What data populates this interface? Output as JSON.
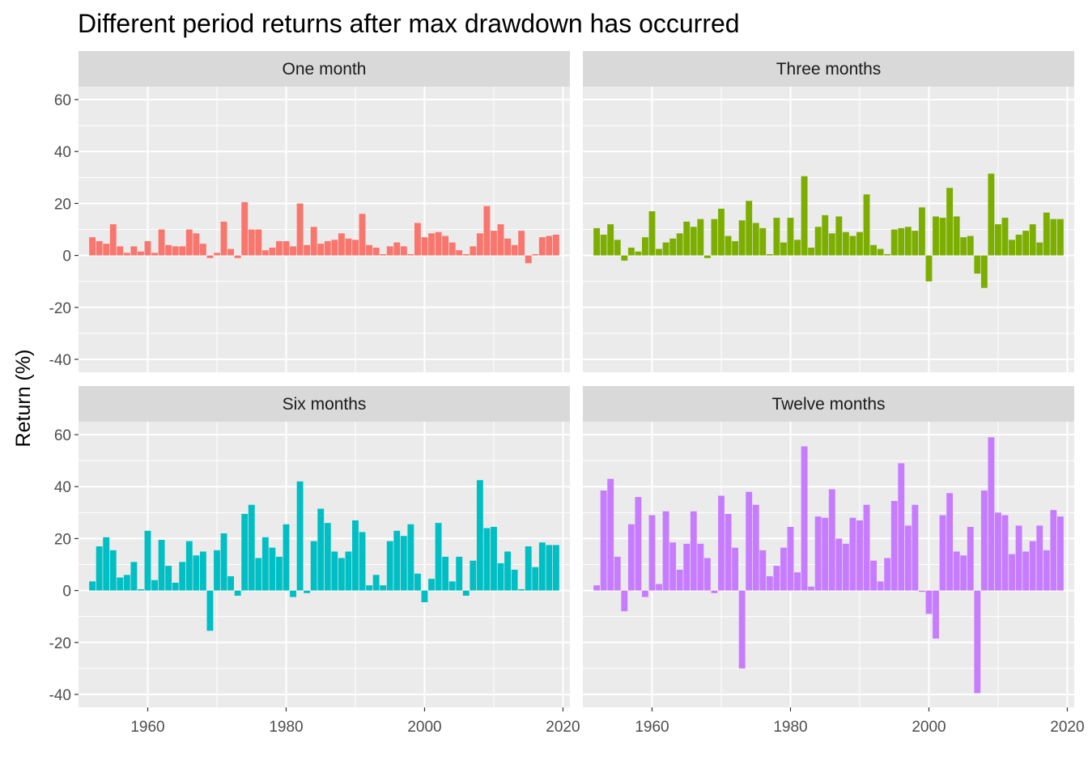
{
  "chart_data": {
    "type": "bar",
    "title": "Different period returns after max drawdown has occurred",
    "xlabel": "",
    "ylabel": "Return (%)",
    "xlim": [
      1950,
      2021
    ],
    "ylim": [
      -45,
      65
    ],
    "x_ticks": [
      1960,
      1980,
      2000,
      2020
    ],
    "y_ticks": [
      -40,
      -20,
      0,
      20,
      40,
      60
    ],
    "grid": true,
    "legend": "none",
    "layout": "2x2 facets",
    "years": [
      1952,
      1953,
      1954,
      1955,
      1956,
      1957,
      1958,
      1959,
      1960,
      1961,
      1962,
      1963,
      1964,
      1965,
      1966,
      1967,
      1968,
      1969,
      1970,
      1971,
      1972,
      1973,
      1974,
      1975,
      1976,
      1977,
      1978,
      1979,
      1980,
      1981,
      1982,
      1983,
      1984,
      1985,
      1986,
      1987,
      1988,
      1989,
      1990,
      1991,
      1992,
      1993,
      1994,
      1995,
      1996,
      1997,
      1998,
      1999,
      2000,
      2001,
      2002,
      2003,
      2004,
      2005,
      2006,
      2007,
      2008,
      2009,
      2010,
      2011,
      2012,
      2013,
      2014,
      2015,
      2016,
      2017,
      2018,
      2019
    ],
    "series": [
      {
        "name": "One month",
        "color": "#F8766D",
        "values": [
          7,
          5.5,
          4.5,
          12,
          3.5,
          1,
          3.5,
          1.5,
          5.5,
          1,
          10,
          4,
          3.5,
          3.5,
          10,
          8.5,
          4.5,
          -1,
          1,
          13,
          2.5,
          -1,
          20.5,
          10,
          10,
          2,
          3,
          5.5,
          5.5,
          3.5,
          20,
          4,
          11,
          4.5,
          5.5,
          6,
          8.5,
          6.5,
          6,
          16,
          4,
          3,
          0.5,
          3.5,
          5,
          3.5,
          0.5,
          12.5,
          7,
          8.5,
          9,
          7.5,
          5,
          2,
          0.5,
          3.5,
          8.5,
          19,
          9.5,
          12,
          6.5,
          4,
          9.5,
          -3,
          0.5,
          7,
          7.5,
          8
        ]
      },
      {
        "name": "Three months",
        "color": "#7CAE00",
        "values": [
          10.5,
          8,
          12,
          6,
          -2,
          3,
          1.5,
          7,
          17,
          2.5,
          5,
          6.5,
          8.5,
          13,
          11,
          14,
          -1,
          14,
          18,
          7.5,
          5.5,
          13.5,
          21,
          12.5,
          10.5,
          0.5,
          14.5,
          5,
          14.5,
          6,
          30.5,
          3,
          11,
          15.5,
          8.5,
          15,
          9,
          7.5,
          9,
          23.5,
          4,
          2.5,
          0.5,
          10,
          10.5,
          11,
          9.5,
          18.5,
          -10,
          15,
          14.5,
          26,
          15,
          7,
          7.5,
          -7,
          -12.5,
          31.5,
          12,
          14.5,
          6,
          8,
          9.5,
          12,
          5,
          16.5,
          14,
          14
        ]
      },
      {
        "name": "Six months",
        "color": "#00BFC4",
        "values": [
          3.5,
          17,
          20.5,
          15.5,
          5,
          6,
          11,
          0.5,
          23,
          4,
          19.5,
          9.5,
          3,
          11,
          19,
          13.5,
          15,
          -15.5,
          15.5,
          22,
          5.5,
          -2,
          29.5,
          33,
          12.5,
          20.5,
          16.5,
          13,
          25.5,
          -2.5,
          42,
          -1,
          19,
          31.5,
          26,
          15,
          12.5,
          15,
          27,
          22.5,
          2,
          6,
          2,
          19,
          23,
          21,
          25.5,
          6.5,
          -4.5,
          4.5,
          26,
          13,
          3.5,
          13,
          -2,
          11.5,
          42.5,
          24,
          24.5,
          10.5,
          15,
          8,
          0.5,
          17,
          9,
          18.5,
          17.5,
          17.5
        ]
      },
      {
        "name": "Twelve months",
        "color": "#C77CFF",
        "values": [
          2,
          38.5,
          43,
          13,
          -8,
          25.5,
          36,
          -2.5,
          29,
          2.5,
          30.5,
          18.5,
          8,
          18,
          30.5,
          18,
          12.5,
          -1,
          36.5,
          29.5,
          16.5,
          -30,
          38,
          33,
          15.5,
          5.5,
          9.5,
          16.5,
          24.5,
          7,
          55.5,
          1.5,
          28.5,
          28,
          39,
          20,
          18,
          28,
          27,
          33,
          11.5,
          3.5,
          12.5,
          34.5,
          49,
          25,
          33,
          -0.5,
          -9,
          -18.5,
          29,
          37.5,
          15,
          13.5,
          24.5,
          -39.5,
          38.5,
          59,
          30,
          29,
          14,
          25,
          15,
          19,
          25,
          15.5,
          31,
          28.5
        ]
      }
    ]
  }
}
